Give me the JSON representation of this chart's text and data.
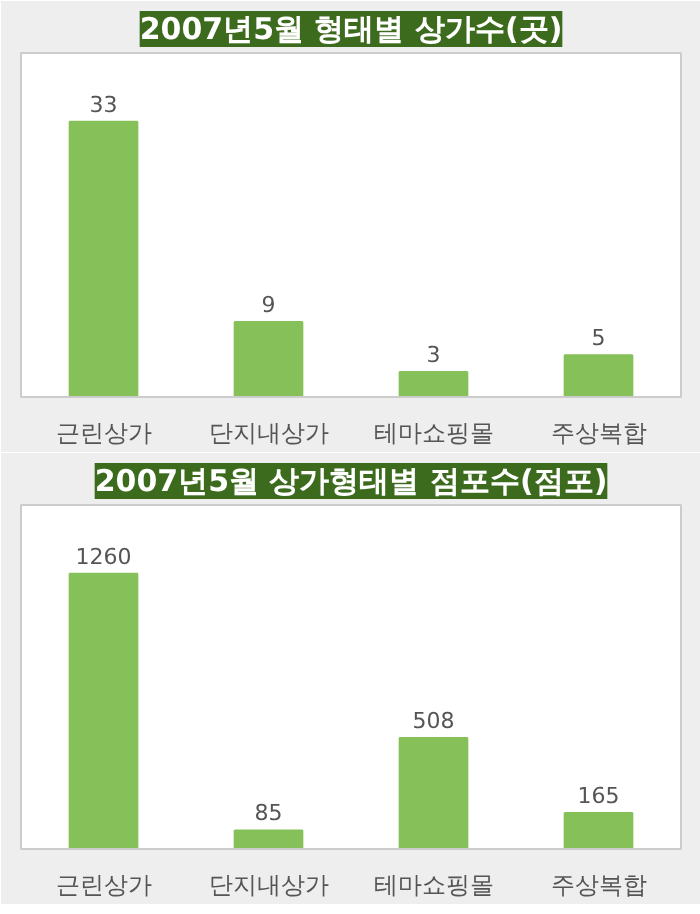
{
  "chart_data": [
    {
      "type": "bar",
      "title": "2007년5월 형태별 상가수(곳)",
      "categories": [
        "근린상가",
        "단지내상가",
        "테마쇼핑몰",
        "주상복합"
      ],
      "values": [
        33,
        9,
        3,
        5
      ],
      "color": "#85c158",
      "data_labels": true
    },
    {
      "type": "bar",
      "title": "2007년5월 상가형태별 점포수(점포)",
      "categories": [
        "근린상가",
        "단지내상가",
        "테마쇼핑몰",
        "주상복합"
      ],
      "values": [
        1260,
        85,
        508,
        165
      ],
      "color": "#85c158",
      "data_labels": true
    }
  ]
}
